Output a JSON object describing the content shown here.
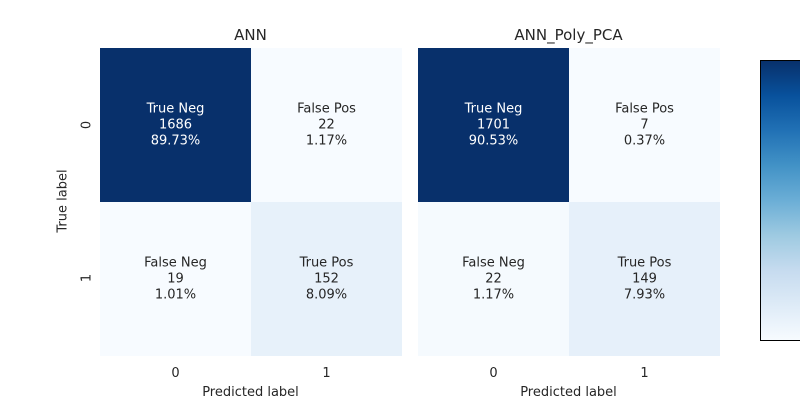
{
  "chart_data": [
    {
      "type": "heatmap",
      "title": "ANN",
      "xlabel": "Predicted label",
      "ylabel": "True label",
      "x_ticks": [
        "0",
        "1"
      ],
      "y_ticks": [
        "0",
        "1"
      ],
      "colormap": "Blues",
      "cells": [
        [
          {
            "label": "True Neg",
            "count": "1686",
            "percent": "89.73%",
            "value": 1686
          },
          {
            "label": "False Pos",
            "count": "22",
            "percent": "1.17%",
            "value": 22
          }
        ],
        [
          {
            "label": "False Neg",
            "count": "19",
            "percent": "1.01%",
            "value": 19
          },
          {
            "label": "True Pos",
            "count": "152",
            "percent": "8.09%",
            "value": 152
          }
        ]
      ]
    },
    {
      "type": "heatmap",
      "title": "ANN_Poly_PCA",
      "xlabel": "Predicted label",
      "ylabel": "",
      "x_ticks": [
        "0",
        "1"
      ],
      "y_ticks": [],
      "colormap": "Blues",
      "cells": [
        [
          {
            "label": "True Neg",
            "count": "1701",
            "percent": "90.53%",
            "value": 1701
          },
          {
            "label": "False Pos",
            "count": "7",
            "percent": "0.37%",
            "value": 7
          }
        ],
        [
          {
            "label": "False Neg",
            "count": "22",
            "percent": "1.17%",
            "value": 22
          },
          {
            "label": "True Pos",
            "count": "149",
            "percent": "7.93%",
            "value": 149
          }
        ]
      ]
    }
  ],
  "colorbar": {
    "colormap": "Blues",
    "top_color": "#08306b",
    "bottom_color": "#f7fbff"
  }
}
